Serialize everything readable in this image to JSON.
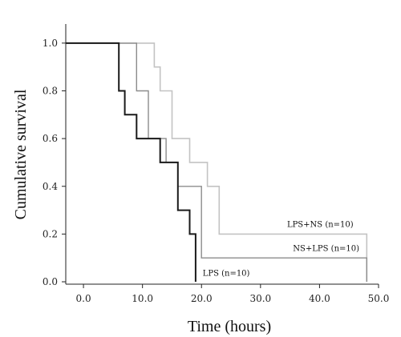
{
  "chart_data": {
    "type": "line",
    "xlabel": "Time (hours)",
    "ylabel": "Cumulative survival",
    "xlim": [
      -3,
      50
    ],
    "ylim": [
      -0.01,
      1.08
    ],
    "xticks": [
      0,
      10,
      20,
      30,
      40,
      50
    ],
    "xtick_labels": [
      "0.0",
      "10.0",
      "20.0",
      "30.0",
      "40.0",
      "50.0"
    ],
    "yticks": [
      0,
      0.2,
      0.4,
      0.6,
      0.8,
      1.0
    ],
    "ytick_labels": [
      "0.0",
      "0.2",
      "0.4",
      "0.6",
      "0.8",
      "1.0"
    ],
    "grid": false,
    "series": [
      {
        "name": "LPS+NS (n=10)",
        "color": "#c3c3c3",
        "width": 1.6,
        "label_x": 34.5,
        "label_y": 0.23,
        "points": [
          [
            -3,
            1.0
          ],
          [
            12,
            1.0
          ],
          [
            12,
            0.9
          ],
          [
            13,
            0.9
          ],
          [
            13,
            0.8
          ],
          [
            15,
            0.8
          ],
          [
            15,
            0.6
          ],
          [
            18,
            0.6
          ],
          [
            18,
            0.5
          ],
          [
            21,
            0.5
          ],
          [
            21,
            0.4
          ],
          [
            23,
            0.4
          ],
          [
            23,
            0.2
          ],
          [
            48,
            0.2
          ],
          [
            48,
            0.0
          ]
        ]
      },
      {
        "name": "NS+LPS (n=10)",
        "color": "#8c8c8c",
        "width": 1.4,
        "label_x": 35.5,
        "label_y": 0.13,
        "points": [
          [
            -3,
            1.0
          ],
          [
            9,
            1.0
          ],
          [
            9,
            0.8
          ],
          [
            11,
            0.8
          ],
          [
            11,
            0.6
          ],
          [
            14,
            0.6
          ],
          [
            14,
            0.5
          ],
          [
            16,
            0.5
          ],
          [
            16,
            0.4
          ],
          [
            20,
            0.4
          ],
          [
            20,
            0.1
          ],
          [
            48,
            0.1
          ],
          [
            48,
            0.0
          ]
        ]
      },
      {
        "name": "LPS (n=10)",
        "color": "#1a1a1a",
        "width": 2.0,
        "label_x": 20.2,
        "label_y": 0.025,
        "points": [
          [
            -3,
            1.0
          ],
          [
            6,
            1.0
          ],
          [
            6,
            0.8
          ],
          [
            7,
            0.8
          ],
          [
            7,
            0.7
          ],
          [
            9,
            0.7
          ],
          [
            9,
            0.6
          ],
          [
            13,
            0.6
          ],
          [
            13,
            0.5
          ],
          [
            16,
            0.5
          ],
          [
            16,
            0.3
          ],
          [
            18,
            0.3
          ],
          [
            18,
            0.2
          ],
          [
            19,
            0.2
          ],
          [
            19,
            0.0
          ]
        ]
      }
    ]
  }
}
